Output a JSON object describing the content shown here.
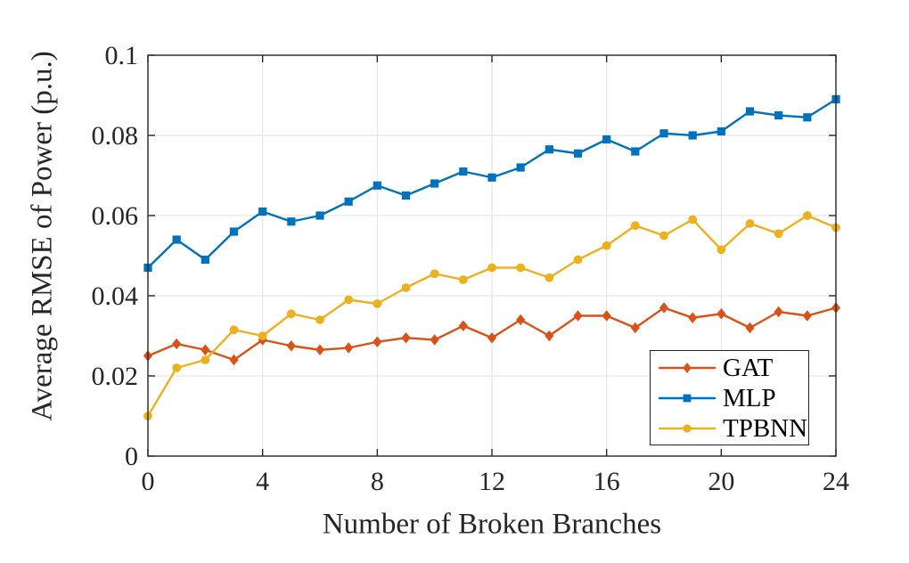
{
  "styles": {
    "background": "#ffffff",
    "axis_color": "#262626",
    "grid_color": "#e6e6e6",
    "tick_label_color": "#262626",
    "legend_border_color": "#262626"
  },
  "chart_data": {
    "type": "line",
    "title": "",
    "xlabel": "Number of Broken Branches",
    "ylabel": "Average RMSE of Power (p.u.)",
    "xlim": [
      0,
      24
    ],
    "ylim": [
      0,
      0.1
    ],
    "xticks": [
      0,
      4,
      8,
      12,
      16,
      20,
      24
    ],
    "xtick_labels": [
      "0",
      "4",
      "8",
      "12",
      "16",
      "20",
      "24"
    ],
    "yticks": [
      0,
      0.02,
      0.04,
      0.06,
      0.08,
      0.1
    ],
    "ytick_labels": [
      "0",
      "0.02",
      "0.04",
      "0.06",
      "0.08",
      "0.1"
    ],
    "grid": true,
    "legend_position": "lower-right-inside",
    "x": [
      0,
      1,
      2,
      3,
      4,
      5,
      6,
      7,
      8,
      9,
      10,
      11,
      12,
      13,
      14,
      15,
      16,
      17,
      18,
      19,
      20,
      21,
      22,
      23,
      24
    ],
    "series": [
      {
        "name": "GAT",
        "color": "#D95319",
        "marker": "diamond",
        "values": [
          0.025,
          0.028,
          0.0265,
          0.024,
          0.029,
          0.0275,
          0.0265,
          0.027,
          0.0285,
          0.0295,
          0.029,
          0.0325,
          0.0295,
          0.034,
          0.03,
          0.035,
          0.035,
          0.032,
          0.037,
          0.0345,
          0.0355,
          0.032,
          0.036,
          0.035,
          0.037
        ]
      },
      {
        "name": "MLP",
        "color": "#0072BD",
        "marker": "square",
        "values": [
          0.047,
          0.054,
          0.049,
          0.056,
          0.061,
          0.0585,
          0.06,
          0.0635,
          0.0675,
          0.065,
          0.068,
          0.071,
          0.0695,
          0.072,
          0.0765,
          0.0755,
          0.079,
          0.076,
          0.0805,
          0.08,
          0.081,
          0.086,
          0.085,
          0.0845,
          0.089
        ]
      },
      {
        "name": "TPBNN",
        "color": "#EDB120",
        "marker": "circle",
        "values": [
          0.01,
          0.022,
          0.024,
          0.0315,
          0.03,
          0.0355,
          0.034,
          0.039,
          0.038,
          0.042,
          0.0455,
          0.044,
          0.047,
          0.047,
          0.0445,
          0.049,
          0.0525,
          0.0575,
          0.055,
          0.059,
          0.0515,
          0.058,
          0.0555,
          0.06,
          0.057
        ]
      }
    ]
  }
}
